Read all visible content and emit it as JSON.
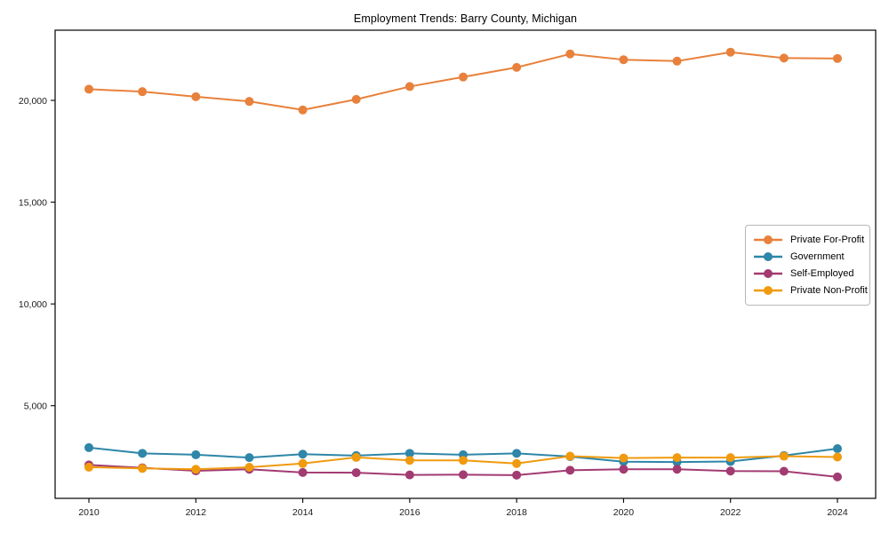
{
  "chart_data": {
    "type": "line",
    "title": "Employment Trends: Barry County, Michigan",
    "xlabel": "",
    "ylabel": "",
    "x": [
      2010,
      2011,
      2012,
      2013,
      2014,
      2015,
      2016,
      2017,
      2018,
      2019,
      2020,
      2021,
      2022,
      2023,
      2024
    ],
    "xticks": [
      2010,
      2012,
      2014,
      2016,
      2018,
      2020,
      2022,
      2024
    ],
    "yticks": [
      5000,
      10000,
      15000,
      20000
    ],
    "ytick_labels": [
      "5,000",
      "10,000",
      "15,000",
      "20,000"
    ],
    "xlim": [
      2009.35,
      2024.72
    ],
    "ylim": [
      450,
      23400
    ],
    "grid": false,
    "legend_position": "center-right",
    "marker": "circle",
    "series": [
      {
        "name": "Private For-Profit",
        "color": "#E8813C",
        "values": [
          20550,
          20430,
          20180,
          19950,
          19530,
          20050,
          20680,
          21150,
          21620,
          22280,
          22000,
          21930,
          22370,
          22080,
          22060
        ]
      },
      {
        "name": "Government",
        "color": "#2E86A8",
        "values": [
          2940,
          2660,
          2590,
          2450,
          2620,
          2550,
          2660,
          2590,
          2660,
          2500,
          2250,
          2230,
          2260,
          2550,
          2890
        ]
      },
      {
        "name": "Self-Employed",
        "color": "#A23B72",
        "values": [
          2090,
          1950,
          1800,
          1880,
          1720,
          1710,
          1600,
          1610,
          1590,
          1830,
          1880,
          1880,
          1790,
          1780,
          1500
        ]
      },
      {
        "name": "Private Non-Profit",
        "color": "#F09A0E",
        "values": [
          1980,
          1920,
          1875,
          1975,
          2160,
          2460,
          2315,
          2315,
          2160,
          2520,
          2430,
          2450,
          2450,
          2520,
          2480
        ]
      }
    ]
  }
}
